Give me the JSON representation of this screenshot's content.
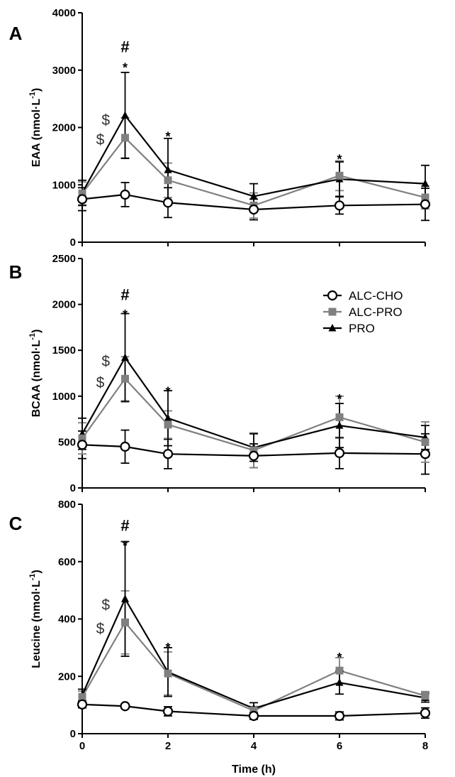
{
  "figure": {
    "x_axis_label": "Time (h)",
    "colors": {
      "ALC-CHO": "#000000",
      "ALC-PRO": "#808080",
      "PRO": "#000000"
    },
    "legend": [
      {
        "name": "ALC-CHO",
        "marker": "open-circle"
      },
      {
        "name": "ALC-PRO",
        "marker": "grey-square"
      },
      {
        "name": "PRO",
        "marker": "black-triangle"
      }
    ]
  },
  "chart_data": [
    {
      "type": "line",
      "panel": "A",
      "ylabel_main": "EAA (nmol·L",
      "ylabel_sup": "-1",
      "ylabel_close": ")",
      "ylim": [
        0,
        4000
      ],
      "yticks": [
        0,
        1000,
        2000,
        3000,
        4000
      ],
      "xlim": [
        0,
        8
      ],
      "xticks": [
        0,
        2,
        4,
        6,
        8
      ],
      "x": [
        0,
        1,
        2,
        4,
        6,
        8
      ],
      "series": [
        {
          "name": "ALC-CHO",
          "values": [
            750,
            830,
            690,
            570,
            640,
            660
          ],
          "errors": [
            200,
            210,
            260,
            180,
            150,
            280
          ]
        },
        {
          "name": "ALC-PRO",
          "values": [
            850,
            1820,
            1080,
            640,
            1160,
            780
          ],
          "errors": [
            200,
            350,
            300,
            220,
            260,
            200
          ]
        },
        {
          "name": "PRO",
          "values": [
            860,
            2210,
            1260,
            800,
            1100,
            1020
          ],
          "errors": [
            220,
            750,
            550,
            220,
            300,
            320
          ]
        }
      ],
      "annotations": [
        {
          "text": "#",
          "x": 1,
          "y": 3400,
          "kind": "hash"
        },
        {
          "text": "*",
          "x": 1,
          "y": 3090,
          "kind": "star"
        },
        {
          "text": "$",
          "x": 0.55,
          "y": 2130,
          "kind": "dollar"
        },
        {
          "text": "$",
          "x": 0.42,
          "y": 1790,
          "kind": "dollar"
        },
        {
          "text": "*",
          "x": 2,
          "y": 1890,
          "kind": "star"
        },
        {
          "text": "*",
          "x": 6,
          "y": 1490,
          "kind": "star"
        }
      ]
    },
    {
      "type": "line",
      "panel": "B",
      "ylabel_main": "BCAA (nmol·L",
      "ylabel_sup": "-1",
      "ylabel_close": ")",
      "ylim": [
        0,
        2500
      ],
      "yticks": [
        0,
        500,
        1000,
        1500,
        2000,
        2500
      ],
      "xlim": [
        0,
        8
      ],
      "xticks": [
        0,
        2,
        4,
        6,
        8
      ],
      "x": [
        0,
        1,
        2,
        4,
        6,
        8
      ],
      "series": [
        {
          "name": "ALC-CHO",
          "values": [
            470,
            450,
            370,
            350,
            380,
            370
          ],
          "errors": [
            150,
            180,
            160,
            130,
            170,
            220
          ]
        },
        {
          "name": "ALC-PRO",
          "values": [
            540,
            1190,
            690,
            410,
            770,
            500
          ],
          "errors": [
            170,
            240,
            150,
            190,
            230,
            220
          ]
        },
        {
          "name": "PRO",
          "values": [
            590,
            1420,
            760,
            440,
            680,
            550
          ],
          "errors": [
            170,
            480,
            300,
            150,
            240,
            130
          ]
        }
      ],
      "annotations": [
        {
          "text": "#",
          "x": 1,
          "y": 2100,
          "kind": "hash"
        },
        {
          "text": "*",
          "x": 1,
          "y": 1920,
          "kind": "star"
        },
        {
          "text": "$",
          "x": 0.55,
          "y": 1380,
          "kind": "dollar"
        },
        {
          "text": "$",
          "x": 0.42,
          "y": 1150,
          "kind": "dollar"
        },
        {
          "text": "*",
          "x": 2,
          "y": 1080,
          "kind": "star"
        },
        {
          "text": "*",
          "x": 6,
          "y": 1000,
          "kind": "star"
        }
      ]
    },
    {
      "type": "line",
      "panel": "C",
      "ylabel_main": "Leucine (nmol·L",
      "ylabel_sup": "-1",
      "ylabel_close": ")",
      "ylim": [
        0,
        800
      ],
      "yticks": [
        0,
        200,
        400,
        600,
        800
      ],
      "xlim": [
        0,
        8
      ],
      "xticks": [
        0,
        2,
        4,
        6,
        8
      ],
      "x": [
        0,
        1,
        2,
        4,
        6,
        8
      ],
      "series": [
        {
          "name": "ALC-CHO",
          "values": [
            102,
            96,
            78,
            62,
            62,
            72
          ],
          "errors": [
            12,
            8,
            16,
            12,
            14,
            18
          ]
        },
        {
          "name": "ALC-PRO",
          "values": [
            128,
            388,
            210,
            80,
            220,
            132
          ],
          "errors": [
            20,
            110,
            75,
            15,
            45,
            15
          ]
        },
        {
          "name": "PRO",
          "values": [
            135,
            470,
            215,
            88,
            178,
            125
          ],
          "errors": [
            20,
            200,
            85,
            20,
            40,
            15
          ]
        }
      ],
      "annotations": [
        {
          "text": "#",
          "x": 1,
          "y": 725,
          "kind": "hash"
        },
        {
          "text": "*",
          "x": 1,
          "y": 665,
          "kind": "star"
        },
        {
          "text": "$",
          "x": 0.55,
          "y": 450,
          "kind": "dollar"
        },
        {
          "text": "$",
          "x": 0.42,
          "y": 367,
          "kind": "dollar"
        },
        {
          "text": "*",
          "x": 2,
          "y": 310,
          "kind": "star"
        },
        {
          "text": "*",
          "x": 6,
          "y": 275,
          "kind": "star"
        }
      ]
    }
  ]
}
